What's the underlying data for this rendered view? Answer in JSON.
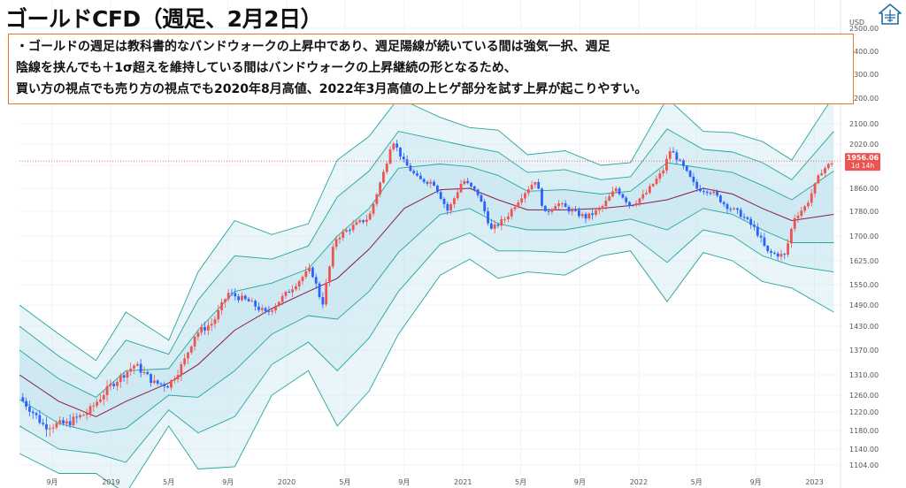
{
  "header": {
    "title": "ゴールドCFD（週足、2月2日）"
  },
  "note": {
    "lines": [
      "・ゴールドの週足は教科書的なバンドウォークの上昇中であり、週足陽線が続いている間は強気一択、週足",
      "陰線を挟んでも＋1σ超えを維持している間はバンドウォークの上昇継続の形となるため、",
      "買い方の視点でも売り方の視点でも2020年8月高値、2022年3月高値の上ヒゲ部分を試す上昇が起こりやすい。"
    ]
  },
  "colors": {
    "up": "#ef5350",
    "down": "#2962ff",
    "band_line": "#26a69a",
    "band_fill": "#bfe3ee",
    "mid_line": "#8b1a4a",
    "price_label": "#ef5350",
    "note_border": "#e8792a",
    "logo": "#1e6fa0"
  },
  "icons": {
    "logo": "house-logo-icon"
  },
  "price_label": {
    "value": "1956.06",
    "countdown": "1d 14h"
  },
  "chart_data": {
    "type": "candlestick",
    "currency_label": "USD",
    "ylim": [
      1080,
      2560
    ],
    "y_ticks": [
      2500.0,
      2400.0,
      2300.0,
      2200.0,
      2100.0,
      2020.0,
      1940.0,
      1860.0,
      1780.0,
      1700.0,
      1625.0,
      1550.0,
      1490.0,
      1430.0,
      1370.0,
      1310.0,
      1260.0,
      1220.0,
      1180.0,
      1140.0,
      1104.0
    ],
    "x_ticks": [
      {
        "date": "2018-09-01",
        "label": "9月"
      },
      {
        "date": "2019-01-01",
        "label": "2019"
      },
      {
        "date": "2019-05-01",
        "label": "5月"
      },
      {
        "date": "2019-09-01",
        "label": "9月"
      },
      {
        "date": "2020-01-01",
        "label": "2020"
      },
      {
        "date": "2020-05-01",
        "label": "5月"
      },
      {
        "date": "2020-09-01",
        "label": "9月"
      },
      {
        "date": "2021-01-01",
        "label": "2021"
      },
      {
        "date": "2021-05-01",
        "label": "5月"
      },
      {
        "date": "2021-09-01",
        "label": "9月"
      },
      {
        "date": "2022-01-01",
        "label": "2022"
      },
      {
        "date": "2022-05-01",
        "label": "5月"
      },
      {
        "date": "2022-09-01",
        "label": "9月"
      },
      {
        "date": "2023-01-01",
        "label": "2023"
      }
    ],
    "x_range": [
      "2018-06-25",
      "2023-02-15"
    ],
    "last_price": 1956.06,
    "series": [
      {
        "role": "close",
        "points": [
          [
            "2018-06-25",
            1255
          ],
          [
            "2018-08-15",
            1190
          ],
          [
            "2018-10-01",
            1195
          ],
          [
            "2018-11-15",
            1220
          ],
          [
            "2019-01-01",
            1285
          ],
          [
            "2019-02-20",
            1335
          ],
          [
            "2019-04-01",
            1290
          ],
          [
            "2019-05-01",
            1285
          ],
          [
            "2019-06-01",
            1340
          ],
          [
            "2019-06-25",
            1410
          ],
          [
            "2019-08-01",
            1440
          ],
          [
            "2019-09-01",
            1525
          ],
          [
            "2019-10-15",
            1500
          ],
          [
            "2019-11-20",
            1465
          ],
          [
            "2020-01-01",
            1525
          ],
          [
            "2020-02-20",
            1600
          ],
          [
            "2020-03-15",
            1490
          ],
          [
            "2020-04-10",
            1690
          ],
          [
            "2020-05-15",
            1730
          ],
          [
            "2020-06-20",
            1760
          ],
          [
            "2020-07-25",
            1940
          ],
          [
            "2020-08-07",
            2040
          ],
          [
            "2020-09-01",
            1950
          ],
          [
            "2020-10-01",
            1890
          ],
          [
            "2020-11-01",
            1880
          ],
          [
            "2020-12-01",
            1780
          ],
          [
            "2021-01-01",
            1890
          ],
          [
            "2021-02-01",
            1840
          ],
          [
            "2021-03-01",
            1720
          ],
          [
            "2021-04-01",
            1760
          ],
          [
            "2021-05-01",
            1830
          ],
          [
            "2021-06-01",
            1890
          ],
          [
            "2021-06-20",
            1770
          ],
          [
            "2021-07-15",
            1810
          ],
          [
            "2021-08-15",
            1780
          ],
          [
            "2021-09-15",
            1760
          ],
          [
            "2021-10-15",
            1790
          ],
          [
            "2021-11-15",
            1860
          ],
          [
            "2021-12-15",
            1800
          ],
          [
            "2022-01-15",
            1840
          ],
          [
            "2022-02-20",
            1920
          ],
          [
            "2022-03-08",
            2000
          ],
          [
            "2022-04-01",
            1940
          ],
          [
            "2022-05-01",
            1860
          ],
          [
            "2022-06-01",
            1850
          ],
          [
            "2022-07-01",
            1800
          ],
          [
            "2022-08-01",
            1770
          ],
          [
            "2022-09-01",
            1720
          ],
          [
            "2022-09-25",
            1650
          ],
          [
            "2022-11-01",
            1640
          ],
          [
            "2022-11-20",
            1760
          ],
          [
            "2022-12-15",
            1800
          ],
          [
            "2023-01-15",
            1920
          ],
          [
            "2023-02-10",
            1956
          ]
        ]
      },
      {
        "role": "basis",
        "points": [
          [
            "2018-06-25",
            1310
          ],
          [
            "2018-09-15",
            1245
          ],
          [
            "2018-12-01",
            1210
          ],
          [
            "2019-02-01",
            1245
          ],
          [
            "2019-05-01",
            1290
          ],
          [
            "2019-07-01",
            1335
          ],
          [
            "2019-09-15",
            1420
          ],
          [
            "2019-12-01",
            1480
          ],
          [
            "2020-02-15",
            1530
          ],
          [
            "2020-04-15",
            1570
          ],
          [
            "2020-06-20",
            1660
          ],
          [
            "2020-09-01",
            1790
          ],
          [
            "2020-11-15",
            1855
          ],
          [
            "2021-01-15",
            1860
          ],
          [
            "2021-03-15",
            1820
          ],
          [
            "2021-05-15",
            1785
          ],
          [
            "2021-08-01",
            1785
          ],
          [
            "2021-10-15",
            1790
          ],
          [
            "2021-12-15",
            1800
          ],
          [
            "2022-03-01",
            1820
          ],
          [
            "2022-05-15",
            1860
          ],
          [
            "2022-07-15",
            1840
          ],
          [
            "2022-09-15",
            1790
          ],
          [
            "2022-11-15",
            1750
          ],
          [
            "2023-02-10",
            1770
          ]
        ]
      },
      {
        "role": "upper_1sigma",
        "points": [
          [
            "2018-06-25",
            1370
          ],
          [
            "2018-09-15",
            1300
          ],
          [
            "2018-12-01",
            1255
          ],
          [
            "2019-02-01",
            1320
          ],
          [
            "2019-05-01",
            1325
          ],
          [
            "2019-07-01",
            1420
          ],
          [
            "2019-09-15",
            1530
          ],
          [
            "2019-12-01",
            1555
          ],
          [
            "2020-02-15",
            1600
          ],
          [
            "2020-04-15",
            1700
          ],
          [
            "2020-06-20",
            1790
          ],
          [
            "2020-08-20",
            1930
          ],
          [
            "2020-11-15",
            1945
          ],
          [
            "2021-01-15",
            1935
          ],
          [
            "2021-03-15",
            1905
          ],
          [
            "2021-05-15",
            1850
          ],
          [
            "2021-08-01",
            1855
          ],
          [
            "2021-10-15",
            1840
          ],
          [
            "2021-12-15",
            1850
          ],
          [
            "2022-03-01",
            1950
          ],
          [
            "2022-05-15",
            1930
          ],
          [
            "2022-07-15",
            1915
          ],
          [
            "2022-09-15",
            1870
          ],
          [
            "2022-11-15",
            1820
          ],
          [
            "2023-02-10",
            1920
          ]
        ]
      },
      {
        "role": "lower_1sigma",
        "points": [
          [
            "2018-06-25",
            1250
          ],
          [
            "2018-09-15",
            1195
          ],
          [
            "2018-12-01",
            1175
          ],
          [
            "2019-02-01",
            1185
          ],
          [
            "2019-05-01",
            1260
          ],
          [
            "2019-07-01",
            1255
          ],
          [
            "2019-09-15",
            1320
          ],
          [
            "2019-12-01",
            1410
          ],
          [
            "2020-02-15",
            1460
          ],
          [
            "2020-04-15",
            1450
          ],
          [
            "2020-06-20",
            1530
          ],
          [
            "2020-08-20",
            1650
          ],
          [
            "2020-11-15",
            1770
          ],
          [
            "2021-01-15",
            1790
          ],
          [
            "2021-03-15",
            1740
          ],
          [
            "2021-05-15",
            1720
          ],
          [
            "2021-08-01",
            1720
          ],
          [
            "2021-10-15",
            1740
          ],
          [
            "2021-12-15",
            1755
          ],
          [
            "2022-03-01",
            1720
          ],
          [
            "2022-05-15",
            1790
          ],
          [
            "2022-07-15",
            1770
          ],
          [
            "2022-09-15",
            1720
          ],
          [
            "2022-11-15",
            1680
          ],
          [
            "2023-02-10",
            1680
          ]
        ]
      },
      {
        "role": "upper_2sigma",
        "points": [
          [
            "2018-06-25",
            1430
          ],
          [
            "2018-09-15",
            1355
          ],
          [
            "2018-12-01",
            1300
          ],
          [
            "2019-02-01",
            1395
          ],
          [
            "2019-05-01",
            1360
          ],
          [
            "2019-07-01",
            1505
          ],
          [
            "2019-09-15",
            1640
          ],
          [
            "2019-12-01",
            1630
          ],
          [
            "2020-02-15",
            1670
          ],
          [
            "2020-04-15",
            1830
          ],
          [
            "2020-06-20",
            1920
          ],
          [
            "2020-08-20",
            2070
          ],
          [
            "2020-11-15",
            2035
          ],
          [
            "2021-01-15",
            2010
          ],
          [
            "2021-03-15",
            1990
          ],
          [
            "2021-05-15",
            1915
          ],
          [
            "2021-08-01",
            1925
          ],
          [
            "2021-10-15",
            1890
          ],
          [
            "2021-12-15",
            1900
          ],
          [
            "2022-03-01",
            2080
          ],
          [
            "2022-05-15",
            2000
          ],
          [
            "2022-07-15",
            1990
          ],
          [
            "2022-09-15",
            1950
          ],
          [
            "2022-11-15",
            1890
          ],
          [
            "2023-02-10",
            2070
          ]
        ]
      },
      {
        "role": "lower_2sigma",
        "points": [
          [
            "2018-06-25",
            1190
          ],
          [
            "2018-09-15",
            1140
          ],
          [
            "2018-12-01",
            1130
          ],
          [
            "2019-02-01",
            1110
          ],
          [
            "2019-05-01",
            1225
          ],
          [
            "2019-07-01",
            1175
          ],
          [
            "2019-09-15",
            1210
          ],
          [
            "2019-12-01",
            1335
          ],
          [
            "2020-02-15",
            1390
          ],
          [
            "2020-04-15",
            1320
          ],
          [
            "2020-06-20",
            1400
          ],
          [
            "2020-08-20",
            1530
          ],
          [
            "2020-11-15",
            1675
          ],
          [
            "2021-01-15",
            1710
          ],
          [
            "2021-03-15",
            1655
          ],
          [
            "2021-05-15",
            1655
          ],
          [
            "2021-08-01",
            1650
          ],
          [
            "2021-10-15",
            1690
          ],
          [
            "2021-12-15",
            1705
          ],
          [
            "2022-03-01",
            1620
          ],
          [
            "2022-05-15",
            1720
          ],
          [
            "2022-07-15",
            1700
          ],
          [
            "2022-09-15",
            1640
          ],
          [
            "2022-11-15",
            1610
          ],
          [
            "2023-02-10",
            1590
          ]
        ]
      },
      {
        "role": "upper_3sigma",
        "points": [
          [
            "2018-06-25",
            1490
          ],
          [
            "2018-09-15",
            1410
          ],
          [
            "2018-12-01",
            1345
          ],
          [
            "2019-02-01",
            1470
          ],
          [
            "2019-05-01",
            1395
          ],
          [
            "2019-07-01",
            1590
          ],
          [
            "2019-09-15",
            1750
          ],
          [
            "2019-12-01",
            1705
          ],
          [
            "2020-02-15",
            1740
          ],
          [
            "2020-04-15",
            1960
          ],
          [
            "2020-06-20",
            2050
          ],
          [
            "2020-08-20",
            2200
          ],
          [
            "2020-11-15",
            2125
          ],
          [
            "2021-01-15",
            2085
          ],
          [
            "2021-03-15",
            2075
          ],
          [
            "2021-05-15",
            1980
          ],
          [
            "2021-08-01",
            1995
          ],
          [
            "2021-10-15",
            1940
          ],
          [
            "2021-12-15",
            1950
          ],
          [
            "2022-03-01",
            2200
          ],
          [
            "2022-05-15",
            2070
          ],
          [
            "2022-07-15",
            2065
          ],
          [
            "2022-09-15",
            2030
          ],
          [
            "2022-11-15",
            1960
          ],
          [
            "2023-02-10",
            2210
          ]
        ]
      },
      {
        "role": "lower_3sigma",
        "points": [
          [
            "2018-06-25",
            1130
          ],
          [
            "2018-09-15",
            1085
          ],
          [
            "2018-12-01",
            1085
          ],
          [
            "2019-02-01",
            1040
          ],
          [
            "2019-05-01",
            1190
          ],
          [
            "2019-07-01",
            1095
          ],
          [
            "2019-09-15",
            1100
          ],
          [
            "2019-12-01",
            1260
          ],
          [
            "2020-02-15",
            1320
          ],
          [
            "2020-04-15",
            1190
          ],
          [
            "2020-06-20",
            1270
          ],
          [
            "2020-08-20",
            1410
          ],
          [
            "2020-11-15",
            1580
          ],
          [
            "2021-01-15",
            1630
          ],
          [
            "2021-03-15",
            1570
          ],
          [
            "2021-05-15",
            1590
          ],
          [
            "2021-08-01",
            1580
          ],
          [
            "2021-10-15",
            1640
          ],
          [
            "2021-12-15",
            1655
          ],
          [
            "2022-03-01",
            1500
          ],
          [
            "2022-05-15",
            1650
          ],
          [
            "2022-07-15",
            1625
          ],
          [
            "2022-09-15",
            1560
          ],
          [
            "2022-11-15",
            1540
          ],
          [
            "2023-02-10",
            1470
          ]
        ]
      }
    ]
  }
}
